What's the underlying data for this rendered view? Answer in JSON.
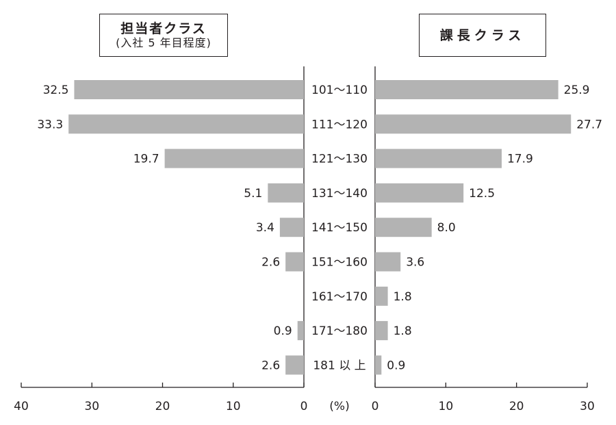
{
  "chart_data": {
    "type": "bar",
    "categories": [
      "101～110",
      "111～120",
      "121～130",
      "131～140",
      "141～150",
      "151～160",
      "161～170",
      "171～180",
      "181 以 上"
    ],
    "series": [
      {
        "name": "担当者クラス",
        "subtitle": "(入社 5 年目程度)",
        "values": [
          32.5,
          33.3,
          19.7,
          5.1,
          3.4,
          2.6,
          null,
          0.9,
          2.6
        ],
        "labels": [
          "32.5",
          "33.3",
          "19.7",
          "5.1",
          "3.4",
          "2.6",
          "",
          "0.9",
          "2.6"
        ]
      },
      {
        "name": "課長クラス",
        "values": [
          25.9,
          27.7,
          17.9,
          12.5,
          8.0,
          3.6,
          1.8,
          1.8,
          0.9
        ],
        "labels": [
          "25.9",
          "27.7",
          "17.9",
          "12.5",
          "8.0",
          "3.6",
          "1.8",
          "1.8",
          "0.9"
        ]
      }
    ],
    "left_axis": {
      "lim": [
        0,
        40
      ],
      "ticks": [
        40,
        30,
        20,
        10,
        0
      ],
      "direction": "reversed"
    },
    "right_axis": {
      "lim": [
        0,
        30
      ],
      "ticks": [
        0,
        10,
        20,
        30
      ]
    },
    "unit_label": "(%)",
    "bar_color": "#b3b3b3",
    "axis_color": "#231f20"
  }
}
